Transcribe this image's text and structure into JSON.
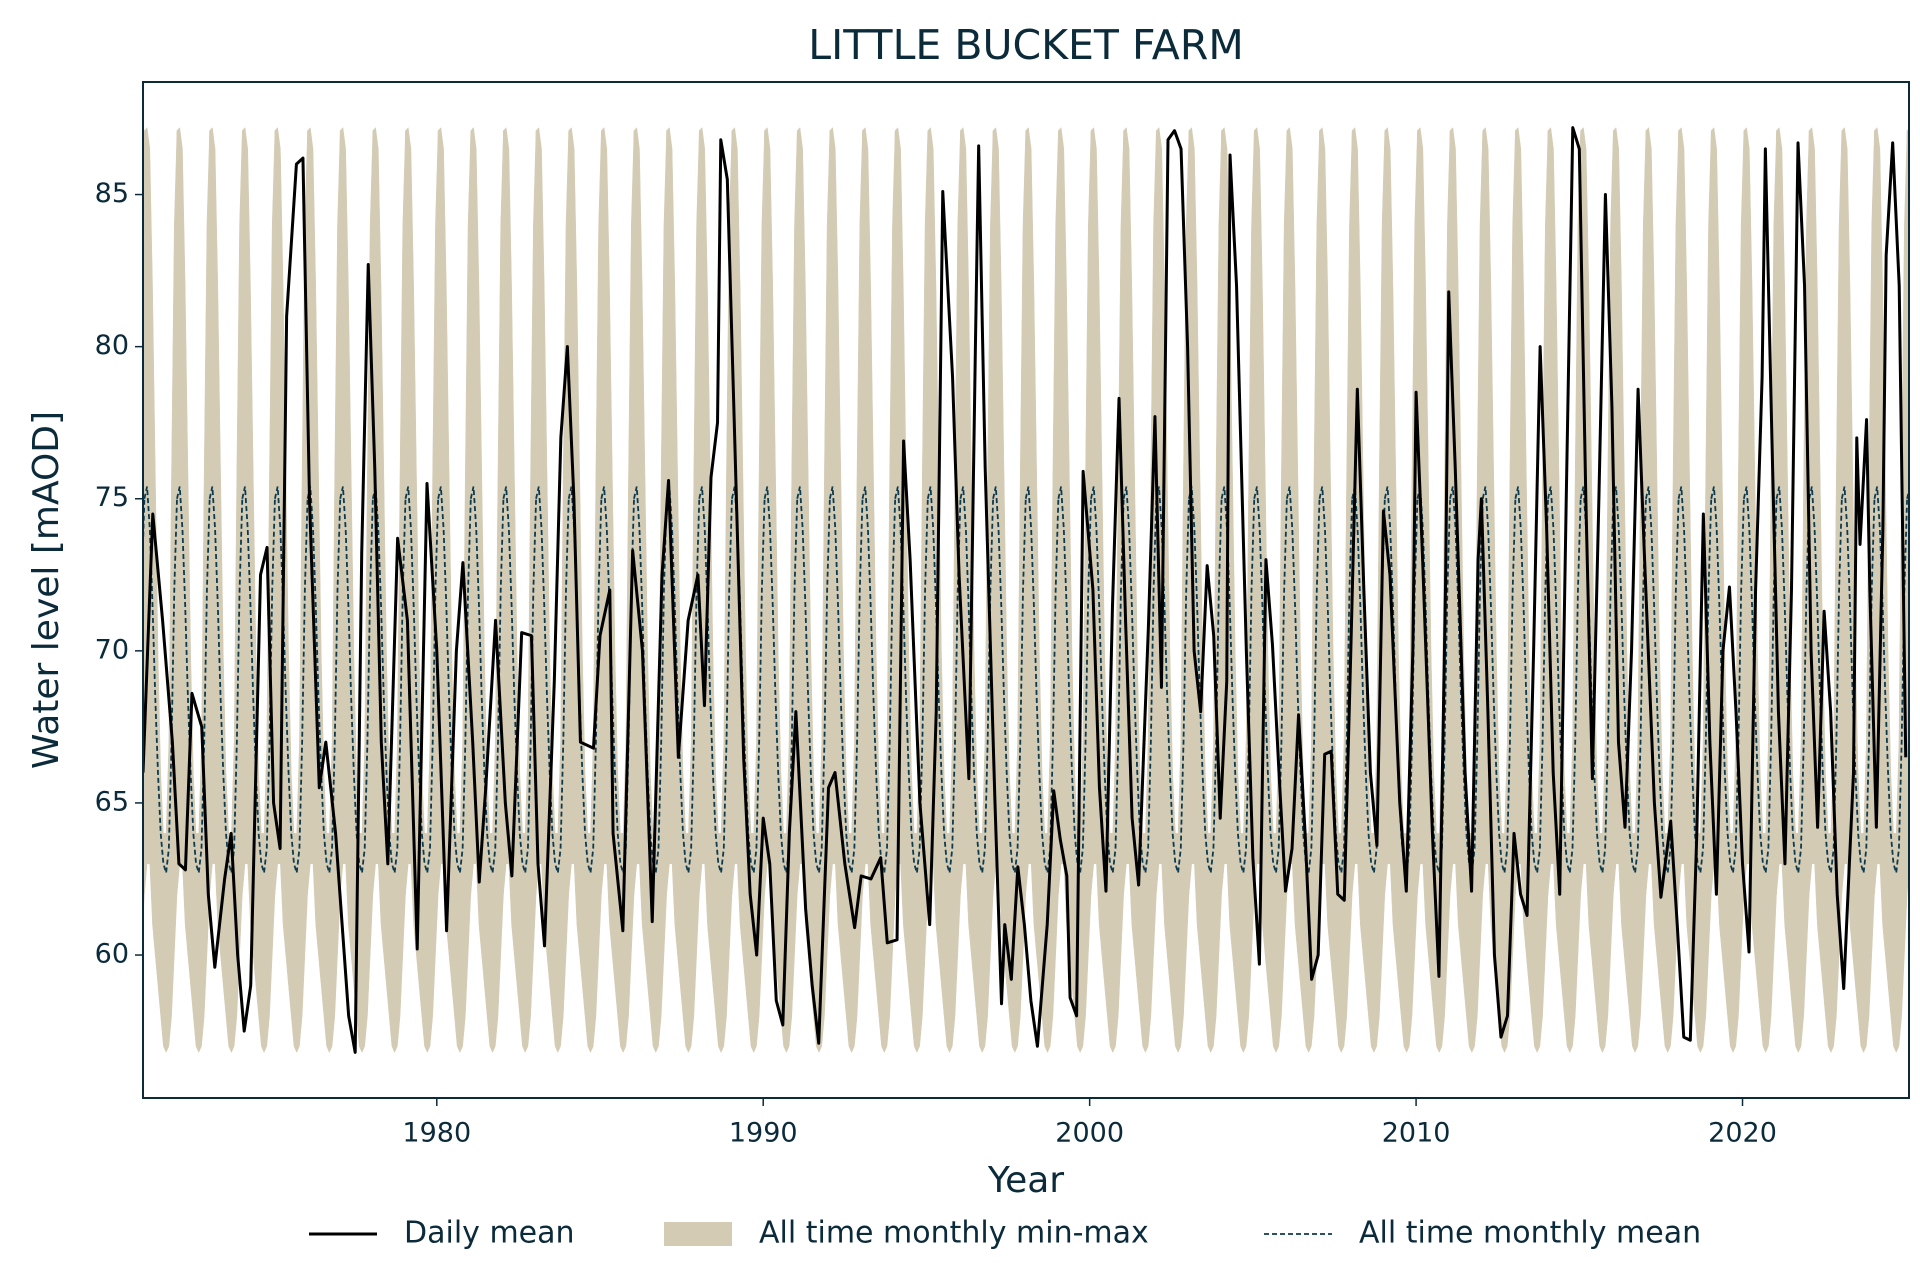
{
  "chart_data": {
    "type": "line",
    "title": "LITTLE BUCKET FARM",
    "x_label": "Year",
    "y_label": "Water level [mAOD]",
    "xlim": [
      1971.0,
      2025.1
    ],
    "ylim": [
      55.3,
      88.7
    ],
    "xticks": [
      1980,
      1990,
      2000,
      2010,
      2020
    ],
    "yticks": [
      60,
      65,
      70,
      75,
      80,
      85
    ],
    "legend": "below",
    "grid": false,
    "series": [
      {
        "name": "Daily mean",
        "color": "#000000",
        "x": [
          1971.0,
          1971.3,
          1971.6,
          1971.9,
          1972.1,
          1972.3,
          1972.5,
          1972.8,
          1973.0,
          1973.2,
          1973.5,
          1973.7,
          1973.9,
          1974.1,
          1974.3,
          1974.6,
          1974.8,
          1975.0,
          1975.2,
          1975.4,
          1975.7,
          1975.9,
          1976.1,
          1976.4,
          1976.6,
          1976.9,
          1977.3,
          1977.5,
          1977.7,
          1977.9,
          1978.1,
          1978.3,
          1978.5,
          1978.8,
          1979.1,
          1979.4,
          1979.7,
          1980.0,
          1980.3,
          1980.6,
          1980.8,
          1981.1,
          1981.3,
          1981.5,
          1981.8,
          1982.1,
          1982.3,
          1982.6,
          1982.9,
          1983.1,
          1983.3,
          1983.6,
          1983.8,
          1984.0,
          1984.2,
          1984.4,
          1984.8,
          1985.0,
          1985.3,
          1985.4,
          1985.7,
          1986.0,
          1986.3,
          1986.6,
          1986.9,
          1987.1,
          1987.4,
          1987.7,
          1988.0,
          1988.2,
          1988.4,
          1988.6,
          1988.7,
          1988.9,
          1989.1,
          1989.4,
          1989.6,
          1989.8,
          1990.0,
          1990.2,
          1990.4,
          1990.6,
          1990.8,
          1991.0,
          1991.3,
          1991.5,
          1991.7,
          1992.0,
          1992.2,
          1992.5,
          1992.8,
          1993.0,
          1993.3,
          1993.6,
          1993.8,
          1994.1,
          1994.3,
          1994.5,
          1994.8,
          1995.1,
          1995.3,
          1995.5,
          1995.8,
          1996.0,
          1996.3,
          1996.5,
          1996.6,
          1996.8,
          1997.1,
          1997.3,
          1997.4,
          1997.6,
          1997.8,
          1998.0,
          1998.2,
          1998.4,
          1998.7,
          1998.9,
          1999.1,
          1999.3,
          1999.4,
          1999.6,
          1999.8,
          2000.1,
          2000.3,
          2000.5,
          2000.7,
          2000.9,
          2001.1,
          2001.3,
          2001.5,
          2001.8,
          2002.0,
          2002.2,
          2002.4,
          2002.6,
          2002.8,
          2003.0,
          2003.2,
          2003.4,
          2003.6,
          2003.8,
          2004.0,
          2004.2,
          2004.3,
          2004.5,
          2004.8,
          2005.0,
          2005.2,
          2005.4,
          2005.6,
          2005.8,
          2006.0,
          2006.2,
          2006.4,
          2006.6,
          2006.8,
          2007.0,
          2007.2,
          2007.4,
          2007.6,
          2007.8,
          2008.0,
          2008.2,
          2008.4,
          2008.6,
          2008.8,
          2009.0,
          2009.2,
          2009.5,
          2009.7,
          2009.9,
          2010.0,
          2010.2,
          2010.5,
          2010.7,
          2010.9,
          2011.0,
          2011.2,
          2011.5,
          2011.7,
          2011.9,
          2012.0,
          2012.2,
          2012.4,
          2012.6,
          2012.8,
          2013.0,
          2013.2,
          2013.4,
          2013.6,
          2013.8,
          2014.0,
          2014.2,
          2014.4,
          2014.6,
          2014.8,
          2015.0,
          2015.2,
          2015.4,
          2015.6,
          2015.8,
          2016.0,
          2016.2,
          2016.4,
          2016.6,
          2016.8,
          2017.0,
          2017.3,
          2017.5,
          2017.8,
          2018.0,
          2018.2,
          2018.4,
          2018.6,
          2018.8,
          2019.0,
          2019.2,
          2019.4,
          2019.6,
          2019.8,
          2020.0,
          2020.2,
          2020.4,
          2020.6,
          2020.7,
          2020.9,
          2021.1,
          2021.3,
          2021.5,
          2021.7,
          2021.9,
          2022.1,
          2022.3,
          2022.5,
          2022.7,
          2022.9,
          2023.1,
          2023.4,
          2023.5,
          2023.6,
          2023.8,
          2023.9,
          2024.1,
          2024.3,
          2024.4,
          2024.6,
          2024.8,
          2025.0
        ],
        "values": [
          66,
          74.5,
          71,
          67,
          63,
          62.8,
          68.6,
          67.5,
          62,
          59.6,
          62.5,
          64,
          60,
          57.5,
          59,
          72.5,
          73.4,
          65,
          63.5,
          81,
          86,
          86.2,
          75,
          65.5,
          67,
          64,
          58,
          56.8,
          73.2,
          82.7,
          76,
          67,
          63,
          73.7,
          71,
          60.2,
          75.5,
          70,
          60.8,
          70,
          72.9,
          67,
          62.4,
          65.5,
          71,
          65,
          62.6,
          70.6,
          70.5,
          63,
          60.3,
          69,
          77,
          80,
          75,
          67,
          66.8,
          70.5,
          72,
          64,
          60.8,
          73.3,
          70,
          61.1,
          72.5,
          75.6,
          66.5,
          71,
          72.5,
          68.2,
          75.7,
          77.5,
          86.8,
          85.5,
          78,
          66.5,
          62,
          60,
          64.5,
          63,
          58.5,
          57.7,
          64,
          68,
          61.5,
          59,
          57.1,
          65.5,
          66,
          63,
          60.9,
          62.6,
          62.5,
          63.2,
          60.4,
          60.5,
          76.9,
          73,
          65,
          61,
          68,
          85.1,
          79,
          72.5,
          65.8,
          80,
          86.6,
          76,
          65,
          58.4,
          61,
          59.2,
          62.9,
          61,
          58.5,
          57,
          61,
          65.4,
          63.8,
          62.6,
          58.6,
          58,
          75.9,
          72,
          65.5,
          62.1,
          71.5,
          78.3,
          71,
          64.5,
          62.3,
          70.8,
          77.7,
          68.8,
          86.8,
          87.1,
          86.5,
          80,
          70,
          68,
          72.8,
          70.5,
          64.5,
          69,
          86.3,
          82,
          70,
          63.2,
          59.7,
          73,
          70.2,
          66,
          62.1,
          63.5,
          67.9,
          64,
          59.2,
          60,
          66.6,
          66.7,
          62,
          61.8,
          70,
          78.6,
          72,
          66,
          63.6,
          74.6,
          72.5,
          65,
          62.1,
          70,
          78.5,
          73,
          64,
          59.3,
          72,
          81.8,
          76,
          66,
          62.1,
          73,
          75,
          68,
          60,
          57.3,
          58,
          64,
          62,
          61.3,
          70,
          80,
          74,
          66,
          62,
          75,
          87.2,
          86.5,
          75,
          65.8,
          75,
          85,
          78,
          67,
          64.2,
          70,
          78.6,
          73,
          65,
          61.9,
          64.4,
          61,
          57.3,
          57.2,
          64,
          74.5,
          67,
          62,
          70,
          72.1,
          68,
          63,
          60.1,
          72,
          79,
          86.5,
          77,
          68,
          63,
          72,
          86.7,
          82,
          70,
          64.2,
          71.3,
          68,
          62,
          58.9,
          66,
          77,
          73.5,
          77.6,
          72,
          64.2,
          74,
          83,
          86.7,
          82,
          66.5
        ]
      },
      {
        "name": "All time monthly min-max",
        "color": "#d4cbb5",
        "upper": [
          87.1,
          87.2,
          86.5,
          82,
          76,
          70,
          66,
          64,
          64,
          67,
          76,
          84
        ],
        "lower": [
          62,
          63,
          63,
          61,
          60,
          59,
          58,
          57,
          56.8,
          57,
          58,
          60
        ]
      },
      {
        "name": "All time monthly mean",
        "color": "#0d3a4d",
        "style": "dashed",
        "values": [
          75,
          75.4,
          74,
          71.5,
          68.5,
          66,
          64,
          63,
          62.7,
          63.5,
          67,
          72
        ]
      }
    ]
  }
}
